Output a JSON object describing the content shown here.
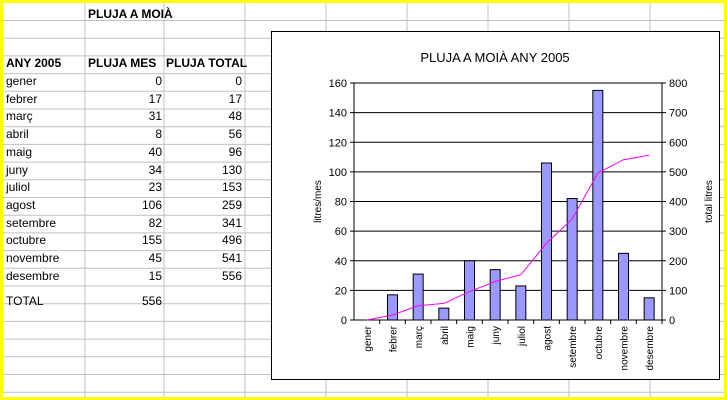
{
  "sheet": {
    "title": "PLUJA A MOIÀ",
    "headers": {
      "year": "ANY 2005",
      "month_rain": "PLUJA MES",
      "total_rain": "PLUJA TOTAL"
    },
    "rows": [
      {
        "month": "gener",
        "mes": "0",
        "total": "0"
      },
      {
        "month": "febrer",
        "mes": "17",
        "total": "17"
      },
      {
        "month": "març",
        "mes": "31",
        "total": "48"
      },
      {
        "month": "abril",
        "mes": "8",
        "total": "56"
      },
      {
        "month": "maig",
        "mes": "40",
        "total": "96"
      },
      {
        "month": "juny",
        "mes": "34",
        "total": "130"
      },
      {
        "month": "juliol",
        "mes": "23",
        "total": "153"
      },
      {
        "month": "agost",
        "mes": "106",
        "total": "259"
      },
      {
        "month": "setembre",
        "mes": "82",
        "total": "341"
      },
      {
        "month": "octubre",
        "mes": "155",
        "total": "496"
      },
      {
        "month": "novembre",
        "mes": "45",
        "total": "541"
      },
      {
        "month": "desembre",
        "mes": "15",
        "total": "556"
      }
    ],
    "total_label": "TOTAL",
    "total_value": "556"
  },
  "colors": {
    "border": "#ffff00",
    "bars": "#9999ff",
    "line": "#ff00ff",
    "grid": "#c0c0c0"
  },
  "chart_data": {
    "type": "bar",
    "title": "PLUJA A MOIÀ ANY 2005",
    "categories": [
      "gener",
      "febrer",
      "març",
      "abril",
      "maig",
      "juny",
      "juliol",
      "agost",
      "setembre",
      "octubre",
      "novembre",
      "desembre"
    ],
    "series": [
      {
        "values": [
          0,
          17,
          31,
          8,
          40,
          34,
          23,
          106,
          82,
          155,
          45,
          15
        ],
        "axis": "left",
        "kind": "bar"
      },
      {
        "values": [
          0,
          17,
          48,
          56,
          96,
          130,
          153,
          259,
          341,
          496,
          541,
          556
        ],
        "axis": "right",
        "kind": "line"
      }
    ],
    "ylabel": "litres/mes",
    "y2label": "total litres",
    "ylim": [
      0,
      160
    ],
    "y2lim": [
      0,
      800
    ],
    "yticks": [
      "0",
      "20",
      "40",
      "60",
      "80",
      "100",
      "120",
      "140",
      "160"
    ],
    "y2ticks": [
      "0",
      "100",
      "200",
      "300",
      "400",
      "500",
      "600",
      "700",
      "800"
    ],
    "grid": true,
    "legend": "none"
  }
}
